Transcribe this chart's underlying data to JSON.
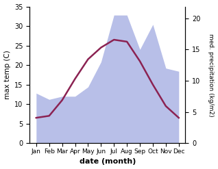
{
  "months": [
    "Jan",
    "Feb",
    "Mar",
    "Apr",
    "May",
    "Jun",
    "Jul",
    "Aug",
    "Sep",
    "Oct",
    "Nov",
    "Dec"
  ],
  "temp_max": [
    6.5,
    7.0,
    11.0,
    16.5,
    21.5,
    24.5,
    26.5,
    26.0,
    21.0,
    15.0,
    9.5,
    6.5
  ],
  "precip": [
    8.0,
    7.0,
    7.5,
    7.5,
    9.0,
    13.0,
    20.5,
    20.5,
    15.0,
    19.0,
    12.0,
    11.5
  ],
  "temp_color": "#8b2252",
  "precip_fill_color": "#b8bfe8",
  "temp_ylim": [
    0,
    35
  ],
  "precip_ylim": [
    0,
    21.875
  ],
  "temp_yticks": [
    0,
    5,
    10,
    15,
    20,
    25,
    30,
    35
  ],
  "precip_yticks": [
    0,
    5,
    10,
    15,
    20
  ],
  "xlabel": "date (month)",
  "ylabel_left": "max temp (C)",
  "ylabel_right": "med. precipitation (kg/m2)",
  "bg_color": "#ffffff"
}
